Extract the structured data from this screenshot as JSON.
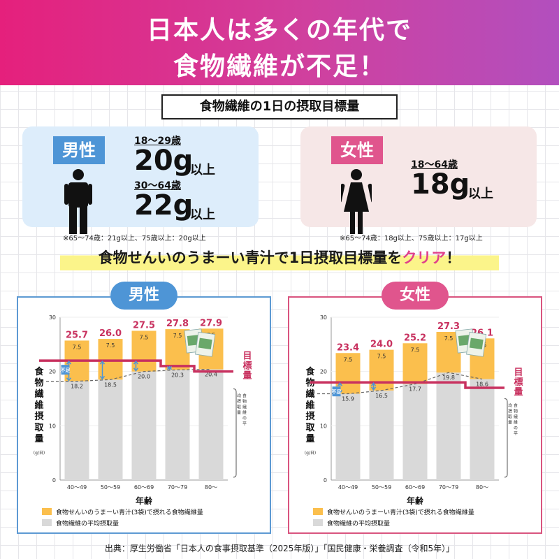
{
  "banner": {
    "line1": "日本人は多くの年代で",
    "line2": "食物繊維が不足！"
  },
  "subtitle": "食物繊維の1日の摂取目標量",
  "male_card": {
    "label": "男性",
    "age1": "18～29歳",
    "value1": "20g",
    "suffix1": "以上",
    "age2": "30～64歳",
    "value2": "22g",
    "suffix2": "以上",
    "note": "※65～74歳：21g以上、75歳以上：20g以上",
    "icon": "male-person-icon"
  },
  "female_card": {
    "label": "女性",
    "age1": "18～64歳",
    "value1": "18g",
    "suffix1": "以上",
    "note": "※65～74歳：18g以上、75歳以上：17g以上",
    "icon": "female-person-icon"
  },
  "claim": {
    "part1": "食物せんいのうまーい青汁で1日摂取目標量を",
    "highlight": "クリア",
    "part2": "！"
  },
  "colors": {
    "orange": "#fbbf4d",
    "gray": "#d9d9d9",
    "target": "#c8315f",
    "total": "#c8315f",
    "male": "#4e95d6",
    "female": "#e0558d"
  },
  "chart_data": [
    {
      "type": "bar",
      "title": "男性",
      "categories": [
        "40～49",
        "50～59",
        "60～69",
        "70～79",
        "80～"
      ],
      "series": [
        {
          "name": "食物繊維の平均摂取量",
          "values": [
            18.2,
            18.5,
            20.0,
            20.3,
            20.4
          ]
        },
        {
          "name": "食物せんいのうまーい青汁(3袋)で摂れる食物繊維量",
          "values": [
            7.5,
            7.5,
            7.5,
            7.5,
            7.5
          ]
        }
      ],
      "totals": [
        25.7,
        26.0,
        27.5,
        27.8,
        27.9
      ],
      "stacked": true,
      "target": {
        "label": "目標量",
        "values": [
          22,
          22,
          22,
          21,
          20
        ]
      },
      "shortfall_label": "不足",
      "avg_label": "食物繊維の平均摂取量",
      "xlabel": "年齢",
      "ylabel": "食物繊維摂取量",
      "yunit": "(g/日)",
      "ylim": [
        0,
        30
      ],
      "yticks": [
        0,
        10,
        20,
        30
      ]
    },
    {
      "type": "bar",
      "title": "女性",
      "categories": [
        "40～49",
        "50～59",
        "60～69",
        "70～79",
        "80～"
      ],
      "series": [
        {
          "name": "食物繊維の平均摂取量",
          "values": [
            15.9,
            16.5,
            17.7,
            19.8,
            18.6
          ]
        },
        {
          "name": "食物せんいのうまーい青汁(3袋)で摂れる食物繊維量",
          "values": [
            7.5,
            7.5,
            7.5,
            7.5,
            7.5
          ]
        }
      ],
      "totals": [
        23.4,
        24.0,
        25.2,
        27.3,
        26.1
      ],
      "stacked": true,
      "target": {
        "label": "目標量",
        "values": [
          18,
          18,
          18,
          18,
          17
        ]
      },
      "shortfall_label": "不足",
      "avg_label": "食物繊維の平均摂取量",
      "xlabel": "年齢",
      "ylabel": "食物繊維摂取量",
      "yunit": "(g/日)",
      "ylim": [
        0,
        30
      ],
      "yticks": [
        0,
        10,
        20,
        30
      ]
    }
  ],
  "source": "出典：厚生労働省「日本人の食事摂取基準（2025年版）」「国民健康・栄養調査（令和5年）」"
}
